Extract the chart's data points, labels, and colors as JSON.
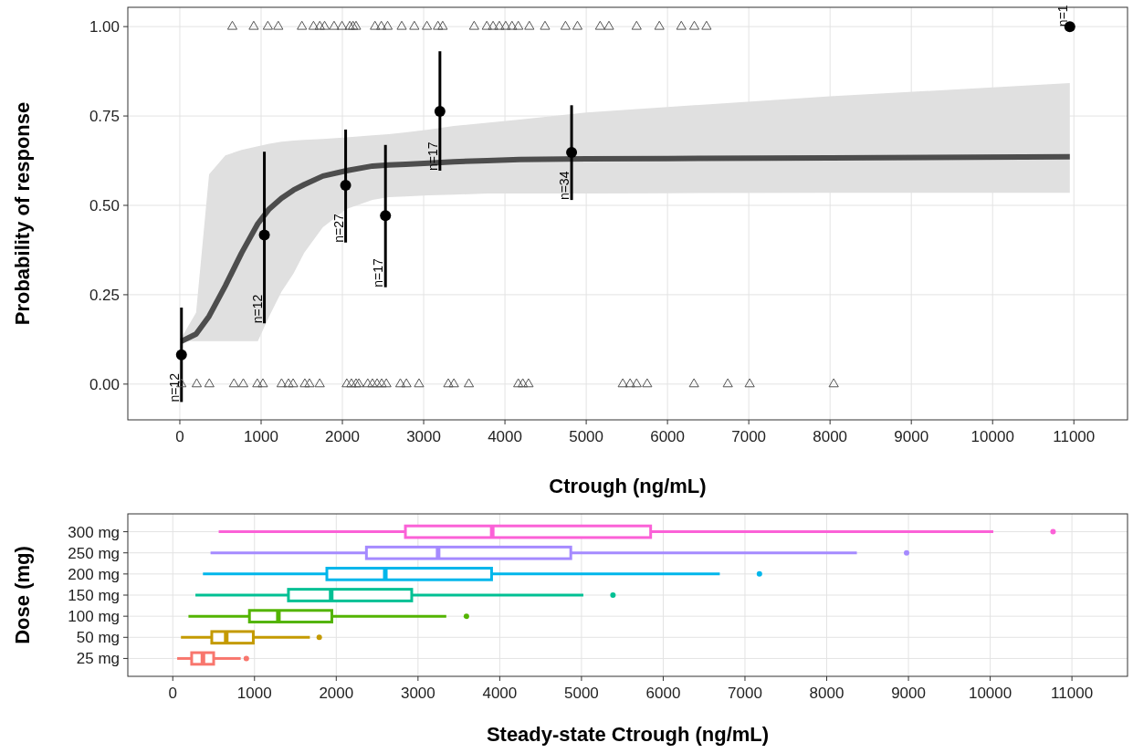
{
  "chart_data": [
    {
      "type": "line",
      "xlabel": "Ctrough (ng/mL)",
      "ylabel": "Probability of response",
      "xlim": [
        -640,
        11660
      ],
      "ylim": [
        -0.1,
        1.054
      ],
      "xticks": [
        0,
        1000,
        2000,
        3000,
        4000,
        5000,
        6000,
        7000,
        8000,
        9000,
        10000,
        11000
      ],
      "yticks": [
        {
          "value": 0,
          "label": "0.00"
        },
        {
          "value": 0.25,
          "label": "0.25"
        },
        {
          "value": 0.5,
          "label": "0.50"
        },
        {
          "value": 0.75,
          "label": "0.75"
        },
        {
          "value": 1,
          "label": "1.00"
        }
      ],
      "grid": true,
      "series": [
        {
          "type": "line",
          "color": "#4d4d4d",
          "x": [
            20,
            200,
            360,
            560,
            760,
            960,
            1100,
            1250,
            1400,
            1530,
            1760,
            2050,
            2370,
            2570,
            2780,
            3060,
            3370,
            3780,
            4180,
            5000,
            6000,
            8000,
            10950
          ],
          "values": [
            0.12,
            0.14,
            0.19,
            0.275,
            0.367,
            0.449,
            0.49,
            0.52,
            0.543,
            0.558,
            0.582,
            0.597,
            0.61,
            0.613,
            0.615,
            0.618,
            0.622,
            0.625,
            0.628,
            0.63,
            0.631,
            0.633,
            0.636
          ],
          "lower": [
            0.12,
            0.12,
            0.12,
            0.12,
            0.12,
            0.12,
            0.19,
            0.258,
            0.31,
            0.367,
            0.439,
            0.49,
            0.515,
            0.523,
            0.525,
            0.528,
            0.53,
            0.533,
            0.533,
            0.533,
            0.534,
            0.535,
            0.535
          ],
          "upper": [
            0.13,
            0.2,
            0.587,
            0.64,
            0.655,
            0.665,
            0.672,
            0.678,
            0.681,
            0.683,
            0.686,
            0.69,
            0.696,
            0.699,
            0.704,
            0.712,
            0.722,
            0.731,
            0.74,
            0.76,
            0.775,
            0.805,
            0.842
          ]
        },
        {
          "type": "scatter",
          "color": "#000000",
          "marker": "circle",
          "x": [
            20,
            1040,
            2040,
            2530,
            3200,
            4820,
            10950
          ],
          "values": [
            0.082,
            0.417,
            0.556,
            0.471,
            0.763,
            0.648,
            1
          ],
          "errors": [
            [
              -0.05,
              0.214
            ],
            [
              0.17,
              0.65
            ],
            [
              0.396,
              0.712
            ],
            [
              0.271,
              0.669
            ],
            [
              0.597,
              0.931
            ],
            [
              0.515,
              0.78
            ],
            null
          ]
        },
        {
          "type": "scatter",
          "color": "#555555",
          "marker": "triangle",
          "x": [
            646,
            909,
            1083,
            1211,
            1502,
            1645,
            1722,
            1781,
            1898,
            1995,
            2091,
            2131,
            2168,
            2401,
            2479,
            2556,
            2730,
            2885,
            3040,
            3176,
            3234,
            3621,
            3777,
            3854,
            3931,
            4009,
            4087,
            4164,
            4300,
            4493,
            4745,
            4892,
            5171,
            5280,
            5620,
            5900,
            6170,
            6330,
            6480
          ],
          "values": [
            1,
            1,
            1,
            1,
            1,
            1,
            1,
            1,
            1,
            1,
            1,
            1,
            1,
            1,
            1,
            1,
            1,
            1,
            1,
            1,
            1,
            1,
            1,
            1,
            1,
            1,
            1,
            1,
            1,
            1,
            1,
            1,
            1,
            1,
            1,
            1,
            1,
            1,
            1
          ]
        },
        {
          "type": "scatter",
          "color": "#555555",
          "marker": "triangle",
          "x": [
            19,
            208,
            363,
            666,
            781,
            953,
            1022,
            1252,
            1337,
            1394,
            1538,
            1595,
            1721,
            2054,
            2111,
            2168,
            2203,
            2312,
            2370,
            2427,
            2483,
            2541,
            2713,
            2788,
            2943,
            3303,
            3372,
            3556,
            4164,
            4220,
            4290,
            5450,
            5540,
            5620,
            5750,
            6326,
            6742,
            7011,
            8045
          ],
          "values": [
            0,
            0,
            0,
            0,
            0,
            0,
            0,
            0,
            0,
            0,
            0,
            0,
            0,
            0,
            0,
            0,
            0,
            0,
            0,
            0,
            0,
            0,
            0,
            0,
            0,
            0,
            0,
            0,
            0,
            0,
            0,
            0,
            0,
            0,
            0,
            0,
            0,
            0,
            0
          ]
        }
      ],
      "annotations": [
        {
          "text": "n=12",
          "x": 20,
          "y": -0.05
        },
        {
          "text": "n=12",
          "x": 1040,
          "y": 0.17
        },
        {
          "text": "n=27",
          "x": 2040,
          "y": 0.396
        },
        {
          "text": "n=17",
          "x": 2530,
          "y": 0.271
        },
        {
          "text": "n=17",
          "x": 3200,
          "y": 0.597
        },
        {
          "text": "n=34",
          "x": 4820,
          "y": 0.515
        },
        {
          "text": "n=1",
          "x": 10950,
          "y": 1
        }
      ]
    },
    {
      "type": "box",
      "orientation": "horizontal",
      "xlabel": "Steady-state Ctrough (ng/mL)",
      "ylabel": "Dose (mg)",
      "xlim": [
        -550,
        11680
      ],
      "xticks": [
        0,
        1000,
        2000,
        3000,
        4000,
        5000,
        6000,
        7000,
        8000,
        9000,
        10000,
        11000
      ],
      "grid": true,
      "categories": [
        "300 mg",
        "250 mg",
        "200 mg",
        "150 mg",
        "100 mg",
        "50 mg",
        "25 mg"
      ],
      "colors": [
        "#fb61d7",
        "#a58aff",
        "#00b6eb",
        "#00c094",
        "#53b400",
        "#c49a00",
        "#f8766d"
      ],
      "boxes": [
        {
          "low": 562,
          "q1": 2846,
          "median": 3908,
          "q3": 5846,
          "high": 10038,
          "outliers": [
            10769
          ]
        },
        {
          "low": 462,
          "q1": 2369,
          "median": 3246,
          "q3": 4869,
          "high": 8369,
          "outliers": [
            8977
          ]
        },
        {
          "low": 369,
          "q1": 1885,
          "median": 2600,
          "q3": 3900,
          "high": 6692,
          "outliers": [
            7177
          ]
        },
        {
          "low": 277,
          "q1": 1415,
          "median": 1938,
          "q3": 2923,
          "high": 5023,
          "outliers": [
            5385
          ]
        },
        {
          "low": 192,
          "q1": 938,
          "median": 1292,
          "q3": 1946,
          "high": 3346,
          "outliers": [
            3592
          ]
        },
        {
          "low": 100,
          "q1": 477,
          "median": 654,
          "q3": 985,
          "high": 1677,
          "outliers": [
            1792
          ]
        },
        {
          "low": 54,
          "q1": 231,
          "median": 369,
          "q3": 500,
          "high": 831,
          "outliers": [
            900
          ]
        }
      ]
    }
  ]
}
